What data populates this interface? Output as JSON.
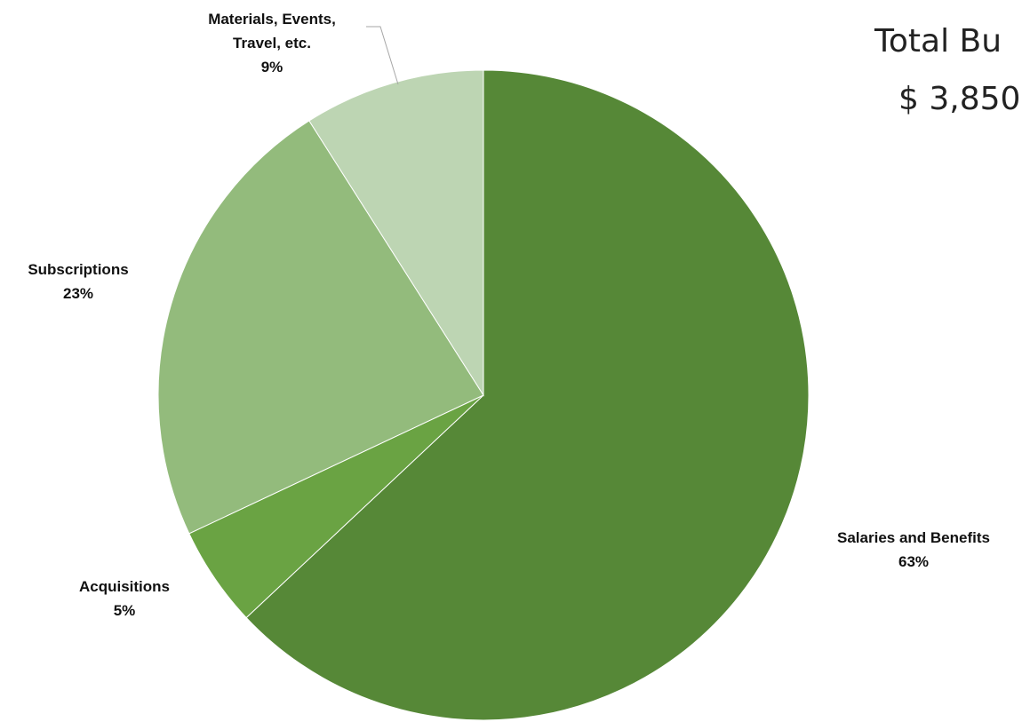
{
  "chart_data": {
    "type": "pie",
    "title": "Total Bu",
    "subtitle": "$ 3,850",
    "categories": [
      "Salaries and Benefits",
      "Acquisitions",
      "Subscriptions",
      "Materials, Events, Travel, etc."
    ],
    "values": [
      63,
      5,
      23,
      9
    ],
    "value_labels": [
      "63%",
      "5%",
      "23%",
      "9%"
    ],
    "colors": [
      "#568837",
      "#6aa343",
      "#93bb7c",
      "#bdd5b3"
    ],
    "label_lines": [
      [
        "Salaries and Benefits"
      ],
      [
        "Acquisitions"
      ],
      [
        "Subscriptions"
      ],
      [
        "Materials, Events,",
        "Travel, etc."
      ]
    ],
    "start_angle_deg": 0,
    "direction": "clockwise",
    "legend": "none"
  }
}
